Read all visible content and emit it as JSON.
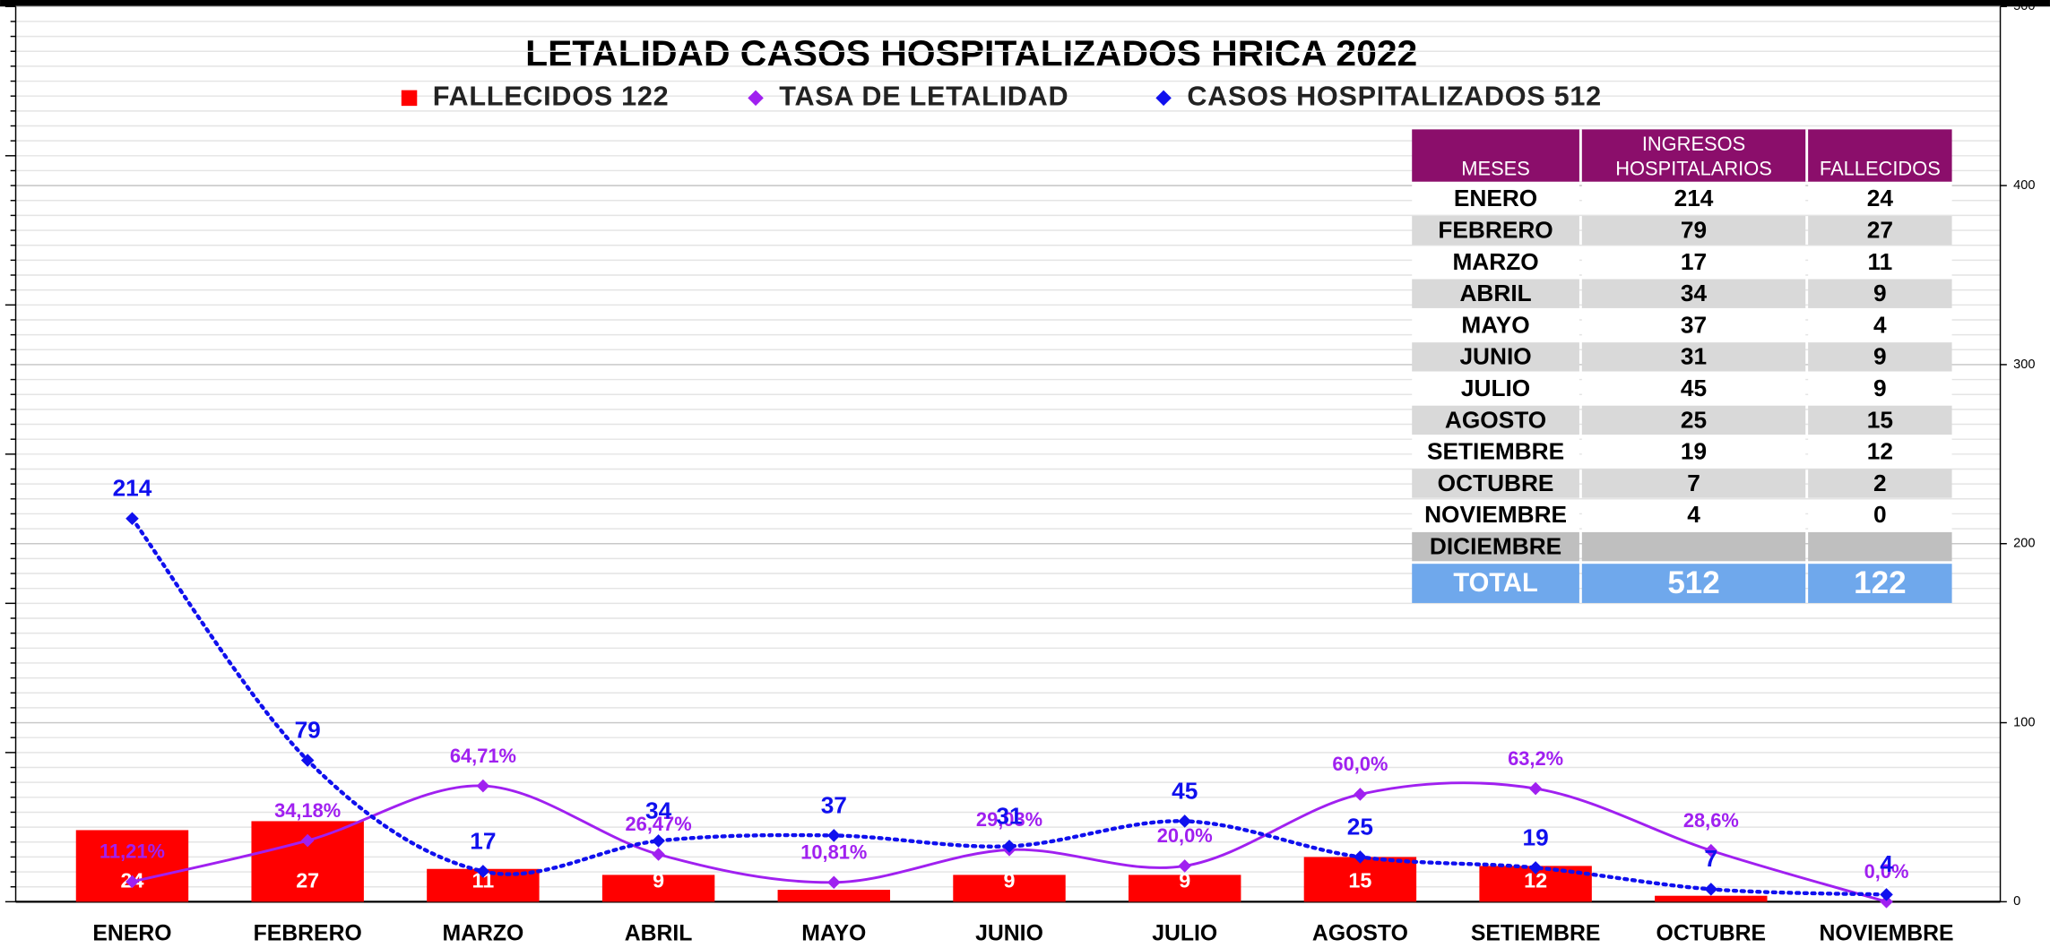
{
  "chart_data": {
    "type": "bar",
    "title": "LETALIDAD CASOS HOSPITALIZADOS HRICA 2022",
    "categories": [
      "ENERO",
      "FEBRERO",
      "MARZO",
      "ABRIL",
      "MAYO",
      "JUNIO",
      "JULIO",
      "AGOSTO",
      "SETIEMBRE",
      "OCTUBRE",
      "NOVIEMBRE"
    ],
    "series": [
      {
        "name": "FALLECIDOS 122",
        "type": "bar",
        "color": "#ff0000",
        "values": [
          24,
          27,
          11,
          9,
          4,
          9,
          9,
          15,
          12,
          2,
          0
        ]
      },
      {
        "name": "TASA DE LETALIDAD",
        "type": "line",
        "axis": "y2",
        "color": "#a020f0",
        "values": [
          11.21,
          34.18,
          64.71,
          26.47,
          10.81,
          29.03,
          20.0,
          60.0,
          63.2,
          28.6,
          0.0
        ],
        "value_labels": [
          "11,21%",
          "34,18%",
          "64,71%",
          "26,47%",
          "10,81%",
          "29,03%",
          "20,0%",
          "60,0%",
          "63,2%",
          "28,6%",
          "0,0%"
        ]
      },
      {
        "name": "CASOS HOSPITALIZADOS 512",
        "type": "line",
        "axis": "y2",
        "color": "#1010ee",
        "dotted": true,
        "values": [
          214,
          79,
          17,
          34,
          37,
          31,
          45,
          25,
          19,
          7,
          4
        ]
      }
    ],
    "ylim": [
      0,
      300
    ],
    "y2lim": [
      0,
      500
    ],
    "y2ticks": [
      0,
      100,
      200,
      300,
      400,
      500
    ],
    "grid": true,
    "legend": "top"
  },
  "table": {
    "header": [
      "MESES",
      "INGRESOS HOSPITALARIOS",
      "FALLECIDOS"
    ],
    "rows": [
      [
        "ENERO",
        "214",
        "24"
      ],
      [
        "FEBRERO",
        "79",
        "27"
      ],
      [
        "MARZO",
        "17",
        "11"
      ],
      [
        "ABRIL",
        "34",
        "9"
      ],
      [
        "MAYO",
        "37",
        "4"
      ],
      [
        "JUNIO",
        "31",
        "9"
      ],
      [
        "JULIO",
        "45",
        "9"
      ],
      [
        "AGOSTO",
        "25",
        "15"
      ],
      [
        "SETIEMBRE",
        "19",
        "12"
      ],
      [
        "OCTUBRE",
        "7",
        "2"
      ],
      [
        "NOVIEMBRE",
        "4",
        "0"
      ],
      [
        "DICIEMBRE"
      ]
    ],
    "total": [
      "TOTAL",
      "512",
      "122"
    ]
  }
}
